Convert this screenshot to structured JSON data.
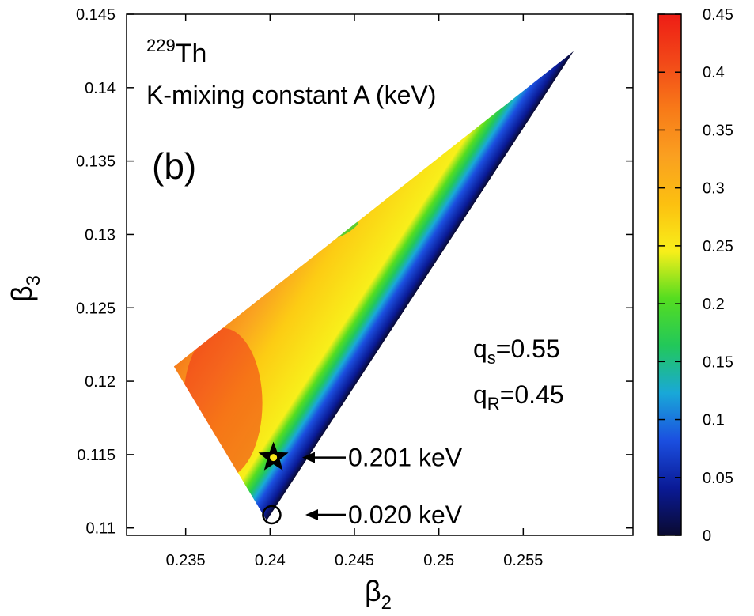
{
  "chart_data": {
    "type": "heatmap",
    "title_isotope_mass": "229",
    "title_isotope_symbol": "Th",
    "title_line2": "K-mixing constant A (keV)",
    "panel_label": "(b)",
    "xlabel_symbol": "β",
    "xlabel_sub": "2",
    "ylabel_symbol": "β",
    "ylabel_sub": "3",
    "xlim": [
      0.2315,
      0.2615
    ],
    "ylim": [
      0.1095,
      0.145
    ],
    "x_ticks": [
      0.235,
      0.24,
      0.245,
      0.25,
      0.255
    ],
    "x_tick_labels": [
      "0.235",
      "0.24",
      "0.245",
      "0.25",
      "0.255"
    ],
    "y_ticks": [
      0.11,
      0.115,
      0.12,
      0.125,
      0.13,
      0.135,
      0.14,
      0.145
    ],
    "y_tick_labels": [
      "0.11",
      "0.115",
      "0.12",
      "0.125",
      "0.13",
      "0.135",
      "0.14",
      "0.145"
    ],
    "colorbar": {
      "range": [
        0,
        0.45
      ],
      "ticks": [
        0,
        0.05,
        0.1,
        0.15,
        0.2,
        0.25,
        0.3,
        0.35,
        0.4,
        0.45
      ],
      "tick_labels": [
        "0",
        "0.05",
        "0.1",
        "0.15",
        "0.2",
        "0.25",
        "0.3",
        "0.35",
        "0.4",
        "0.45"
      ],
      "colors": [
        "#0a0a30",
        "#0a1a96",
        "#1b4fe0",
        "#19a8d8",
        "#22c85a",
        "#55dd20",
        "#f8ef1a",
        "#fcc010",
        "#faa020",
        "#f87a18",
        "#f24818",
        "#ee1d15"
      ]
    },
    "region_boundary": [
      {
        "beta2": 0.2343,
        "beta3": 0.121
      },
      {
        "beta2": 0.258,
        "beta3": 0.1425
      },
      {
        "beta2": 0.2398,
        "beta3": 0.1105
      }
    ],
    "param_qs_label": "q",
    "param_qs_sub": "s",
    "param_qs_value": "=0.55",
    "param_qr_label": "q",
    "param_qr_sub": "R",
    "param_qr_value": "=0.45",
    "annotations": [
      {
        "marker": "star",
        "beta2": 0.2402,
        "beta3": 0.1148,
        "label": "0.201 keV"
      },
      {
        "marker": "circle",
        "beta2": 0.2401,
        "beta3": 0.1109,
        "label": "0.020 keV"
      }
    ]
  }
}
